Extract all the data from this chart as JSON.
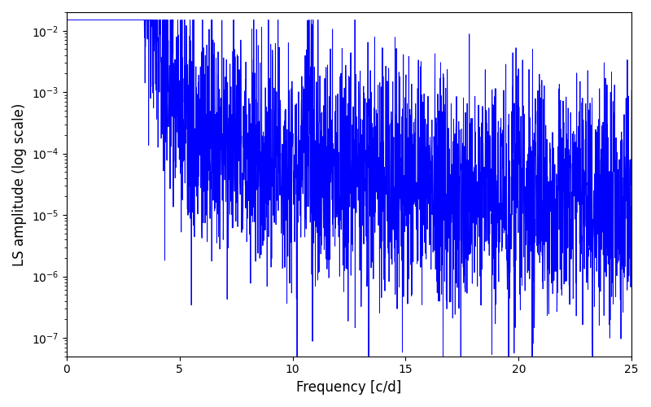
{
  "title": "",
  "xlabel": "Frequency [c/d]",
  "ylabel": "LS amplitude (log scale)",
  "line_color": "#0000ff",
  "line_width": 0.7,
  "xlim": [
    0,
    25
  ],
  "ylim": [
    5e-08,
    0.02
  ],
  "yscale": "log",
  "yticks": [
    1e-07,
    1e-06,
    1e-05,
    0.0001,
    0.001,
    0.01
  ],
  "xticks": [
    0,
    5,
    10,
    15,
    20,
    25
  ],
  "figsize": [
    8.0,
    5.0
  ],
  "dpi": 100,
  "seed": 12345,
  "n_points": 3000,
  "envelope_base": 0.002,
  "envelope_decay": 2.2,
  "envelope_scale": 0.35,
  "noise_sigma": 2.2,
  "min_amp": 5e-08
}
